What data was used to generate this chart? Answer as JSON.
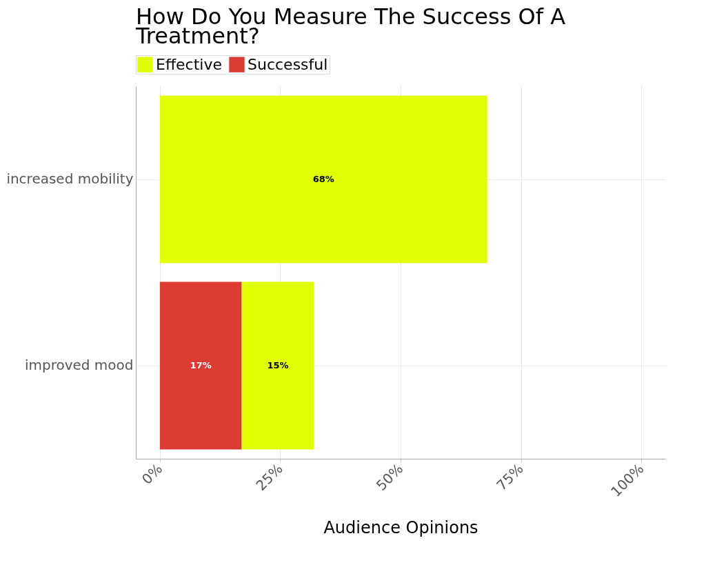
{
  "chart_data": {
    "type": "bar",
    "orientation": "horizontal",
    "stacked": true,
    "title": "How Do You Measure The Success Of A Treatment?",
    "xlabel": "Audience Opinions",
    "categories": [
      "increased mobility",
      "improved mood"
    ],
    "series": [
      {
        "name": "Successful",
        "color": "#dc3b34",
        "values": [
          null,
          17
        ],
        "value_labels": [
          null,
          "17%"
        ]
      },
      {
        "name": "Effective",
        "color": "#e0ff00",
        "values": [
          68,
          15
        ],
        "value_labels": [
          "68%",
          "15%"
        ]
      }
    ],
    "xlim": [
      -5,
      105
    ],
    "xticks": [
      {
        "value": 0,
        "label": "0%"
      },
      {
        "value": 25,
        "label": "25%"
      },
      {
        "value": 50,
        "label": "50%"
      },
      {
        "value": 75,
        "label": "75%"
      },
      {
        "value": 100,
        "label": "100%"
      }
    ],
    "grid": true,
    "legend": "top"
  }
}
